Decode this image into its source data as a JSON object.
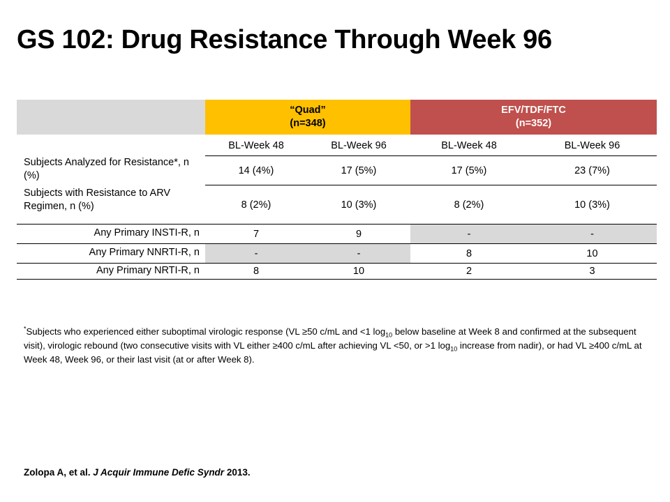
{
  "title": "GS 102: Drug Resistance Through Week 96",
  "table": {
    "groups": [
      {
        "name": "“Quad”",
        "n": "(n=348)",
        "color": "#ffc000"
      },
      {
        "name": "EFV/TDF/FTC",
        "n": "(n=352)",
        "color": "#c0504d"
      }
    ],
    "subheaders": [
      "BL-Week 48",
      "BL-Week 96",
      "BL-Week 48",
      "BL-Week 96"
    ],
    "rows": [
      {
        "label": "Subjects Analyzed for Resistance*, n (%)",
        "values": [
          "14 (4%)",
          "17 (5%)",
          "17 (5%)",
          "23 (7%)"
        ]
      },
      {
        "label": "Subjects with Resistance to ARV Regimen, n (%)",
        "values": [
          "8 (2%)",
          "10 (3%)",
          "8 (2%)",
          "10 (3%)"
        ]
      },
      {
        "label": "Any Primary INSTI-R, n",
        "values": [
          "7",
          "9",
          "-",
          "-"
        ]
      },
      {
        "label": "Any Primary NNRTI-R, n",
        "values": [
          "-",
          "-",
          "8",
          "10"
        ]
      },
      {
        "label": "Any Primary NRTI-R, n",
        "values": [
          "8",
          "10",
          "2",
          "3"
        ]
      }
    ]
  },
  "footnote": {
    "marker": "*",
    "part1": "Subjects who experienced either suboptimal virologic response (VL ≥50 c/mL and <1 log",
    "sub1": "10",
    "part2": " below baseline at Week 8 and confirmed at the subsequent visit), virologic rebound (two consecutive visits with VL either ≥400 c/mL after achieving VL <50, or >1 log",
    "sub2": "10",
    "part3": " increase from nadir), or had VL ≥400 c/mL at Week 48, Week 96, or their last visit (at or after Week 8)."
  },
  "citation": {
    "authors": "Zolopa A, et al. ",
    "journal": "J Acquir Immune Defic Syndr",
    "year": " 2013."
  }
}
